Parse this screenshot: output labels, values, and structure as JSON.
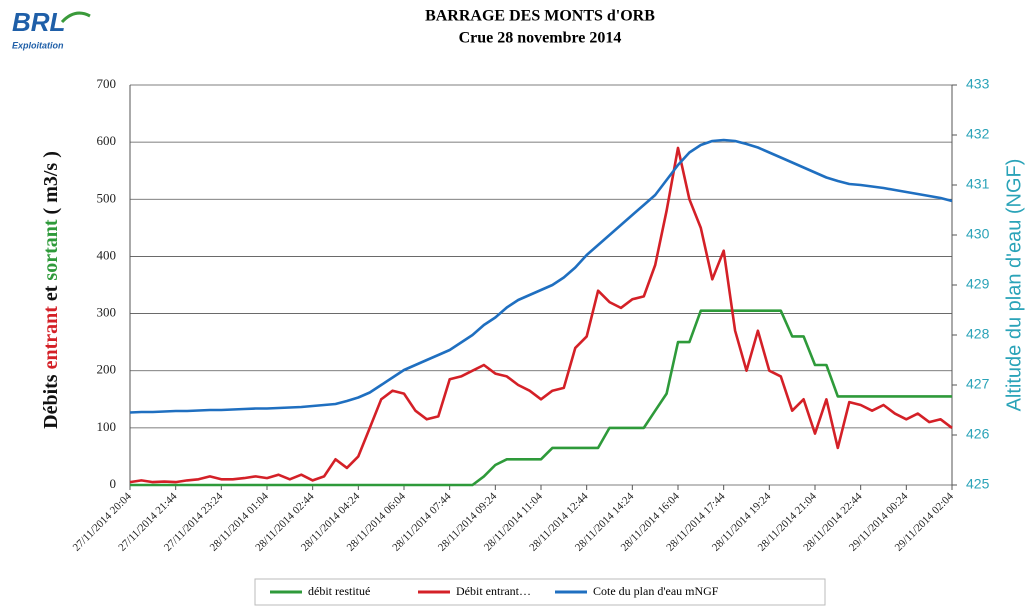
{
  "logo": {
    "brand": "BRL",
    "sub": "Exploitation"
  },
  "chart_data": {
    "type": "line",
    "title": "BARRAGE  DES MONTS d'ORB",
    "subtitle": "Crue  28 novembre 2014",
    "ylabel_parts": [
      {
        "text": "Débits ",
        "color": "#111111"
      },
      {
        "text": "entrant",
        "color": "#d42027"
      },
      {
        "text": " et ",
        "color": "#111111"
      },
      {
        "text": "sortant",
        "color": "#2e9a3a"
      },
      {
        "text": "  ( m3/s )",
        "color": "#111111"
      }
    ],
    "y2label": "Altitude du plan d'eau (NGF)",
    "ylim": [
      0,
      700
    ],
    "yticks": [
      0,
      100,
      200,
      300,
      400,
      500,
      600,
      700
    ],
    "y2lim": [
      425,
      433
    ],
    "y2ticks": [
      425,
      426,
      427,
      428,
      429,
      430,
      431,
      432,
      433
    ],
    "grid": true,
    "legend": "bottom",
    "categories": [
      "27/11/2014 20:04",
      null,
      null,
      null,
      "27/11/2014 21:44",
      null,
      null,
      null,
      "27/11/2014 23:24",
      null,
      null,
      null,
      "28/11/2014 01:04",
      null,
      null,
      null,
      "28/11/2014 02:44",
      null,
      null,
      null,
      "28/11/2014 04:24",
      null,
      null,
      null,
      "28/11/2014 06:04",
      null,
      null,
      null,
      "28/11/2014 07:44",
      null,
      null,
      null,
      "28/11/2014 09:24",
      null,
      null,
      null,
      "28/11/2014 11:04",
      null,
      null,
      null,
      "28/11/2014 12:44",
      null,
      null,
      null,
      "28/11/2014 14:24",
      null,
      null,
      null,
      "28/11/2014 16:04",
      null,
      null,
      null,
      "28/11/2014 17:44",
      null,
      null,
      null,
      "28/11/2014 19:24",
      null,
      null,
      null,
      "28/11/2014 21:04",
      null,
      null,
      null,
      "28/11/2014 22:44",
      null,
      null,
      null,
      "29/11/2014 00:24",
      null,
      null,
      null,
      "29/11/2014 02:04"
    ],
    "series": [
      {
        "name": "débit restitué",
        "color": "#2e9a3a",
        "values": [
          0,
          0,
          0,
          0,
          0,
          0,
          0,
          0,
          0,
          0,
          0,
          0,
          0,
          0,
          0,
          0,
          0,
          0,
          0,
          0,
          0,
          0,
          0,
          0,
          0,
          0,
          0,
          0,
          0,
          0,
          0,
          15,
          35,
          45,
          45,
          45,
          45,
          65,
          65,
          65,
          65,
          65,
          100,
          100,
          100,
          100,
          130,
          160,
          250,
          250,
          305,
          305,
          305,
          305,
          305,
          305,
          305,
          305,
          260,
          260,
          210,
          210,
          155,
          155,
          155,
          155,
          155,
          155,
          155,
          155,
          155,
          155,
          155
        ]
      },
      {
        "name": "Débit entrant…",
        "color": "#d42027",
        "values": [
          5,
          8,
          5,
          6,
          5,
          8,
          10,
          15,
          10,
          10,
          12,
          15,
          12,
          18,
          10,
          18,
          8,
          15,
          45,
          30,
          50,
          100,
          150,
          165,
          160,
          130,
          115,
          120,
          185,
          190,
          200,
          210,
          195,
          190,
          175,
          165,
          150,
          165,
          170,
          240,
          260,
          340,
          320,
          310,
          325,
          330,
          385,
          480,
          590,
          500,
          450,
          360,
          410,
          270,
          200,
          270,
          200,
          190,
          130,
          150,
          90,
          150,
          65,
          145,
          140,
          130,
          140,
          125,
          115,
          125,
          110,
          115,
          100
        ]
      },
      {
        "name": "Cote du plan d'eau  mNGF",
        "color": "#1f6fc0",
        "axis": "y2",
        "values": [
          426.45,
          426.46,
          426.46,
          426.47,
          426.48,
          426.48,
          426.49,
          426.5,
          426.5,
          426.51,
          426.52,
          426.53,
          426.53,
          426.54,
          426.55,
          426.56,
          426.58,
          426.6,
          426.62,
          426.68,
          426.75,
          426.85,
          427.0,
          427.15,
          427.3,
          427.4,
          427.5,
          427.6,
          427.7,
          427.85,
          428.0,
          428.2,
          428.35,
          428.55,
          428.7,
          428.8,
          428.9,
          429.0,
          429.15,
          429.35,
          429.6,
          429.8,
          430.0,
          430.2,
          430.4,
          430.6,
          430.8,
          431.1,
          431.4,
          431.65,
          431.8,
          431.88,
          431.9,
          431.88,
          431.82,
          431.75,
          431.65,
          431.55,
          431.45,
          431.35,
          431.25,
          431.15,
          431.08,
          431.02,
          431.0,
          430.97,
          430.94,
          430.9,
          430.86,
          430.82,
          430.78,
          430.74,
          430.68
        ]
      }
    ]
  }
}
